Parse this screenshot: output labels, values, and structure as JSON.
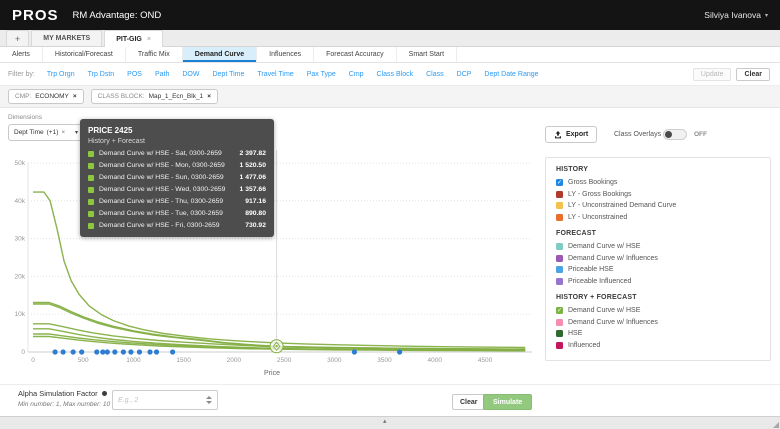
{
  "icons": {
    "plus": "+",
    "close": "×",
    "caret_down": "▾",
    "check": "✓",
    "chevron_up": "▴"
  },
  "header": {
    "brand": "PROS",
    "title": "RM Advantage: OND",
    "user": "Silviya Ivanova"
  },
  "tabs": {
    "items": [
      {
        "label": "MY MARKETS",
        "active": false
      },
      {
        "label": "PIT-GIG",
        "active": true
      }
    ]
  },
  "subtabs": {
    "active": "Demand Curve",
    "items": [
      "Alerts",
      "Historical/Forecast",
      "Traffic Mix",
      "Demand Curve",
      "Influences",
      "Forecast Accuracy",
      "Smart Start"
    ]
  },
  "filterbar": {
    "label": "Filter by:",
    "links": [
      "Trp Orgn",
      "Trp Dstn",
      "POS",
      "Path",
      "DOW",
      "Dept Time",
      "Travel Time",
      "Pax Type",
      "Cmp",
      "Class Block",
      "Class",
      "DCP",
      "Dept Date Range"
    ],
    "update": "Update",
    "clear": "Clear"
  },
  "chips": [
    {
      "key": "CMP:",
      "value": "ECONOMY"
    },
    {
      "key": "CLASS BLOCK:",
      "value": "Map_1_Ecn_Blk_1"
    }
  ],
  "dimensions": {
    "label": "Dimensions",
    "value": "Dept Time",
    "extra": "(+1)"
  },
  "toolbar": {
    "export": "Export",
    "overlays_label": "Class Overlays",
    "overlays_state": "OFF"
  },
  "tooltip": {
    "title": "PRICE 2425",
    "subtitle": "History + Forecast",
    "swatch_color": "#8dc63f",
    "rows": [
      {
        "label": "Demand Curve w/ HSE - Sat, 0300-2659",
        "value": "2 397.82"
      },
      {
        "label": "Demand Curve w/ HSE - Mon, 0300-2659",
        "value": "1 520.50"
      },
      {
        "label": "Demand Curve w/ HSE - Sun, 0300-2659",
        "value": "1 477.06"
      },
      {
        "label": "Demand Curve w/ HSE - Wed, 0300-2659",
        "value": "1 357.66"
      },
      {
        "label": "Demand Curve w/ HSE - Thu, 0300-2659",
        "value": "917.16"
      },
      {
        "label": "Demand Curve w/ HSE - Tue, 0300-2659",
        "value": "890.80"
      },
      {
        "label": "Demand Curve w/ HSE - Fri, 0300-2659",
        "value": "730.92"
      }
    ]
  },
  "legend": {
    "sections": [
      {
        "title": "HISTORY",
        "items": [
          {
            "label": "Gross Bookings",
            "color": "#1e88e5",
            "type": "checkbox"
          },
          {
            "label": "LY - Gross Bookings",
            "color": "#b03a2e",
            "type": "swatch"
          },
          {
            "label": "LY - Unconstrained Demand Curve",
            "color": "#f2c14e",
            "type": "swatch"
          },
          {
            "label": "LY - Unconstrained",
            "color": "#e8702a",
            "type": "swatch"
          }
        ]
      },
      {
        "title": "FORECAST",
        "items": [
          {
            "label": "Demand Curve w/ HSE",
            "color": "#7fccc3",
            "type": "swatch"
          },
          {
            "label": "Demand Curve w/ Influences",
            "color": "#9b59b6",
            "type": "swatch"
          },
          {
            "label": "Priceable HSE",
            "color": "#4ba3e3",
            "type": "swatch"
          },
          {
            "label": "Priceable Influenced",
            "color": "#9575cd",
            "type": "swatch"
          }
        ]
      },
      {
        "title": "HISTORY + FORECAST",
        "items": [
          {
            "label": "Demand Curve w/ HSE",
            "color": "#7cb342",
            "type": "checkbox"
          },
          {
            "label": "Demand Curve w/ Influences",
            "color": "#f48fb1",
            "type": "swatch"
          },
          {
            "label": "HSE",
            "color": "#2f6b2f",
            "type": "swatch"
          },
          {
            "label": "Influenced",
            "color": "#c2185b",
            "type": "swatch"
          }
        ]
      }
    ]
  },
  "alpha": {
    "label": "Alpha Simulation Factor",
    "hint": "Min number: 1, Max number: 10",
    "placeholder": "E.g., 2",
    "clear": "Clear",
    "simulate": "Simulate"
  },
  "chart_data": {
    "type": "line",
    "xlabel": "Price",
    "ylabel": "",
    "xlim": [
      0,
      4940
    ],
    "ylim": [
      0,
      50000
    ],
    "grid": true,
    "legend_position": "right",
    "xticks": [
      0,
      500,
      1000,
      1500,
      2000,
      2500,
      3000,
      3500,
      4000,
      4500
    ],
    "ytick_values": [
      0,
      10000,
      20000,
      30000,
      40000,
      50000
    ],
    "ytick_labels": [
      "0",
      "10k",
      "20k",
      "30k",
      "40k",
      "50k"
    ],
    "curve_color": "#84af43",
    "crosshair": {
      "price": 2425,
      "marker_value": 1520.5
    },
    "series": [
      {
        "name": "Demand Curve w/ HSE - Sat, 0300-2659",
        "value_at_2425": 2397.82,
        "points": [
          [
            0,
            42300
          ],
          [
            110,
            42300
          ],
          [
            170,
            40000
          ],
          [
            240,
            32500
          ],
          [
            310,
            24000
          ],
          [
            380,
            18800
          ],
          [
            460,
            15200
          ],
          [
            560,
            12200
          ],
          [
            680,
            9900
          ],
          [
            800,
            8300
          ],
          [
            950,
            6900
          ],
          [
            1100,
            5900
          ],
          [
            1300,
            4900
          ],
          [
            1500,
            4200
          ],
          [
            1750,
            3500
          ],
          [
            2000,
            3000
          ],
          [
            2200,
            2700
          ],
          [
            2425,
            2398
          ],
          [
            2700,
            2150
          ],
          [
            3000,
            1930
          ],
          [
            3400,
            1700
          ],
          [
            3800,
            1520
          ],
          [
            4200,
            1380
          ],
          [
            4600,
            1260
          ],
          [
            4900,
            1180
          ]
        ]
      },
      {
        "name": "Demand Curve w/ HSE - Mon, 0300-2659",
        "value_at_2425": 1520.5,
        "points": [
          [
            0,
            13100
          ],
          [
            160,
            13100
          ],
          [
            260,
            12200
          ],
          [
            380,
            10700
          ],
          [
            500,
            9300
          ],
          [
            650,
            7900
          ],
          [
            800,
            6800
          ],
          [
            1000,
            5600
          ],
          [
            1200,
            4700
          ],
          [
            1400,
            4000
          ],
          [
            1650,
            3300
          ],
          [
            1900,
            2500
          ],
          [
            2150,
            1950
          ],
          [
            2425,
            1521
          ],
          [
            2700,
            1320
          ],
          [
            3000,
            1180
          ],
          [
            3400,
            1050
          ],
          [
            3800,
            950
          ],
          [
            4200,
            870
          ],
          [
            4600,
            800
          ],
          [
            4900,
            760
          ]
        ]
      },
      {
        "name": "Demand Curve w/ HSE - Sun, 0300-2659",
        "value_at_2425": 1477.06,
        "points": [
          [
            0,
            12700
          ],
          [
            160,
            12700
          ],
          [
            260,
            11800
          ],
          [
            380,
            10300
          ],
          [
            500,
            9000
          ],
          [
            650,
            7600
          ],
          [
            800,
            6500
          ],
          [
            1000,
            5400
          ],
          [
            1200,
            4500
          ],
          [
            1400,
            3850
          ],
          [
            1650,
            3150
          ],
          [
            1900,
            2400
          ],
          [
            2150,
            1880
          ],
          [
            2425,
            1477
          ],
          [
            2700,
            1290
          ],
          [
            3000,
            1150
          ],
          [
            3400,
            1020
          ],
          [
            3800,
            920
          ],
          [
            4200,
            840
          ],
          [
            4600,
            770
          ],
          [
            4900,
            720
          ]
        ]
      },
      {
        "name": "Demand Curve w/ HSE - Wed, 0300-2659",
        "value_at_2425": 1357.66,
        "points": [
          [
            0,
            7450
          ],
          [
            160,
            7450
          ],
          [
            300,
            6700
          ],
          [
            450,
            5800
          ],
          [
            600,
            5050
          ],
          [
            800,
            4250
          ],
          [
            1000,
            3650
          ],
          [
            1250,
            3050
          ],
          [
            1500,
            2600
          ],
          [
            1800,
            2150
          ],
          [
            2100,
            1750
          ],
          [
            2425,
            1358
          ],
          [
            2700,
            1210
          ],
          [
            3000,
            1090
          ],
          [
            3400,
            960
          ],
          [
            3800,
            870
          ],
          [
            4200,
            790
          ],
          [
            4600,
            720
          ],
          [
            4900,
            680
          ]
        ]
      },
      {
        "name": "Demand Curve w/ HSE - Thu, 0300-2659",
        "value_at_2425": 917.16,
        "points": [
          [
            0,
            6150
          ],
          [
            160,
            6150
          ],
          [
            300,
            5450
          ],
          [
            450,
            4650
          ],
          [
            600,
            4000
          ],
          [
            800,
            3300
          ],
          [
            1000,
            2800
          ],
          [
            1250,
            2300
          ],
          [
            1500,
            1900
          ],
          [
            1800,
            1520
          ],
          [
            2100,
            1200
          ],
          [
            2425,
            917
          ],
          [
            2700,
            810
          ],
          [
            3000,
            720
          ],
          [
            3400,
            630
          ],
          [
            3800,
            560
          ],
          [
            4200,
            500
          ],
          [
            4600,
            450
          ],
          [
            4900,
            420
          ]
        ]
      },
      {
        "name": "Demand Curve w/ HSE - Tue, 0300-2659",
        "value_at_2425": 890.8,
        "points": [
          [
            0,
            4750
          ],
          [
            160,
            4750
          ],
          [
            300,
            4250
          ],
          [
            450,
            3700
          ],
          [
            600,
            3250
          ],
          [
            800,
            2750
          ],
          [
            1000,
            2350
          ],
          [
            1250,
            1950
          ],
          [
            1500,
            1650
          ],
          [
            1800,
            1330
          ],
          [
            2100,
            1090
          ],
          [
            2425,
            891
          ],
          [
            2700,
            780
          ],
          [
            3000,
            690
          ],
          [
            3400,
            600
          ],
          [
            3800,
            530
          ],
          [
            4200,
            480
          ],
          [
            4600,
            430
          ],
          [
            4900,
            400
          ]
        ]
      },
      {
        "name": "Demand Curve w/ HSE - Fri, 0300-2659",
        "value_at_2425": 730.92,
        "points": [
          [
            0,
            4100
          ],
          [
            160,
            4100
          ],
          [
            300,
            3650
          ],
          [
            450,
            3150
          ],
          [
            600,
            2750
          ],
          [
            800,
            2300
          ],
          [
            1000,
            1950
          ],
          [
            1250,
            1600
          ],
          [
            1500,
            1340
          ],
          [
            1800,
            1080
          ],
          [
            2100,
            880
          ],
          [
            2425,
            731
          ],
          [
            2700,
            640
          ],
          [
            3000,
            560
          ],
          [
            3400,
            490
          ],
          [
            3800,
            430
          ],
          [
            4200,
            390
          ],
          [
            4600,
            350
          ],
          [
            4900,
            330
          ]
        ]
      }
    ],
    "scatter": {
      "name": "Gross Bookings",
      "color": "#2d7dd2",
      "y": 0,
      "x": [
        220,
        300,
        400,
        485,
        635,
        695,
        740,
        815,
        900,
        975,
        1060,
        1165,
        1230,
        1390,
        3200,
        3650
      ]
    }
  }
}
